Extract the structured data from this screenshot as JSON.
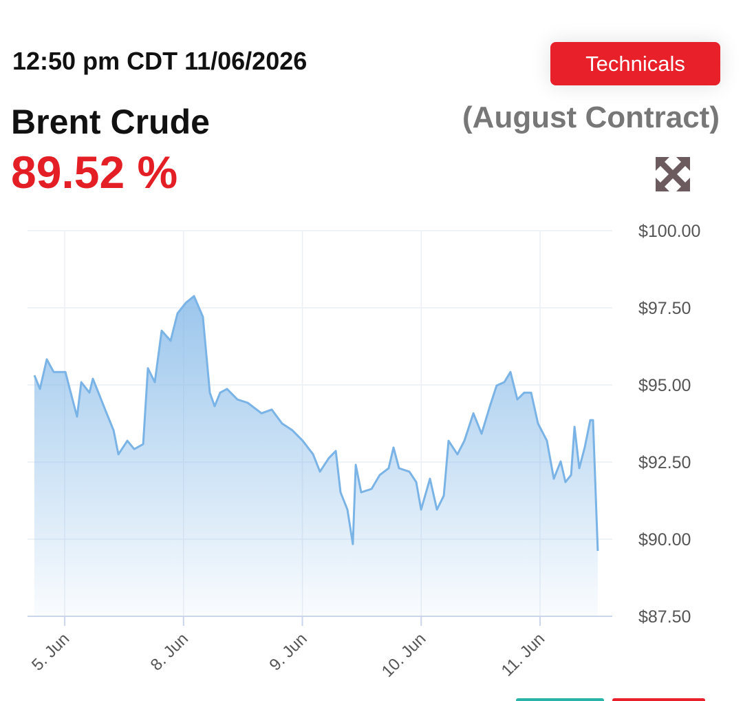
{
  "header": {
    "timestamp": "12:50 pm CDT 11/06/2026",
    "button": "Technicals",
    "title": "Brent Crude",
    "contract": "(August Contract)",
    "price": "89.52 %"
  },
  "chart_data": {
    "type": "area",
    "color": "#7ab3e6",
    "grid": true,
    "x": [
      -0.255,
      -0.208,
      -0.151,
      -0.093,
      0.006,
      0.035,
      0.104,
      0.139,
      0.208,
      0.237,
      0.295,
      0.353,
      0.411,
      0.452,
      0.527,
      0.585,
      0.66,
      0.7,
      0.758,
      0.816,
      0.891,
      0.949,
      1.019,
      1.088,
      1.163,
      1.221,
      1.262,
      1.308,
      1.366,
      1.453,
      1.54,
      1.656,
      1.742,
      1.829,
      1.916,
      2.003,
      2.09,
      2.148,
      2.223,
      2.281,
      2.321,
      2.379,
      2.425,
      2.449,
      2.495,
      2.582,
      2.651,
      2.726,
      2.767,
      2.813,
      2.9,
      2.958,
      2.999,
      3.074,
      3.132,
      3.19,
      3.23,
      3.305,
      3.363,
      3.439,
      3.508,
      3.578,
      3.635,
      3.699,
      3.751,
      3.809,
      3.867,
      3.925,
      3.983,
      4.058,
      4.116,
      4.174,
      4.214,
      4.261,
      4.29,
      4.33,
      4.376,
      4.423,
      4.446,
      4.486
    ],
    "values": [
      95.31,
      94.87,
      95.83,
      95.42,
      95.42,
      94.98,
      93.97,
      95.09,
      94.75,
      95.2,
      94.64,
      94.08,
      93.53,
      92.75,
      93.19,
      92.92,
      93.08,
      95.54,
      95.09,
      96.76,
      96.43,
      97.32,
      97.66,
      97.88,
      97.21,
      94.75,
      94.31,
      94.75,
      94.87,
      94.53,
      94.42,
      94.08,
      94.2,
      93.75,
      93.53,
      93.19,
      92.75,
      92.19,
      92.63,
      92.86,
      91.52,
      90.96,
      89.84,
      92.41,
      91.52,
      91.63,
      92.08,
      92.3,
      92.97,
      92.3,
      92.19,
      91.85,
      90.96,
      91.96,
      90.96,
      91.41,
      93.19,
      92.75,
      93.19,
      94.08,
      93.42,
      94.31,
      94.98,
      95.09,
      95.42,
      94.53,
      94.75,
      94.75,
      93.75,
      93.19,
      91.96,
      92.52,
      91.85,
      92.08,
      93.64,
      92.3,
      92.97,
      93.86,
      93.86,
      89.62
    ],
    "xlim": [
      -0.313,
      4.608
    ],
    "xticks": [
      {
        "value": 0,
        "label": "5. Jun"
      },
      {
        "value": 1,
        "label": "8. Jun"
      },
      {
        "value": 2,
        "label": "9. Jun"
      },
      {
        "value": 3,
        "label": "10. Jun"
      },
      {
        "value": 4,
        "label": "11. Jun"
      }
    ],
    "ylim": [
      87.5,
      100
    ],
    "yticks": [
      {
        "value": 87.5,
        "label": "$87.50"
      },
      {
        "value": 90,
        "label": "$90.00"
      },
      {
        "value": 92.5,
        "label": "$92.50"
      },
      {
        "value": 95,
        "label": "$95.00"
      },
      {
        "value": 97.5,
        "label": "$97.50"
      },
      {
        "value": 100,
        "label": "$100.00"
      }
    ]
  }
}
